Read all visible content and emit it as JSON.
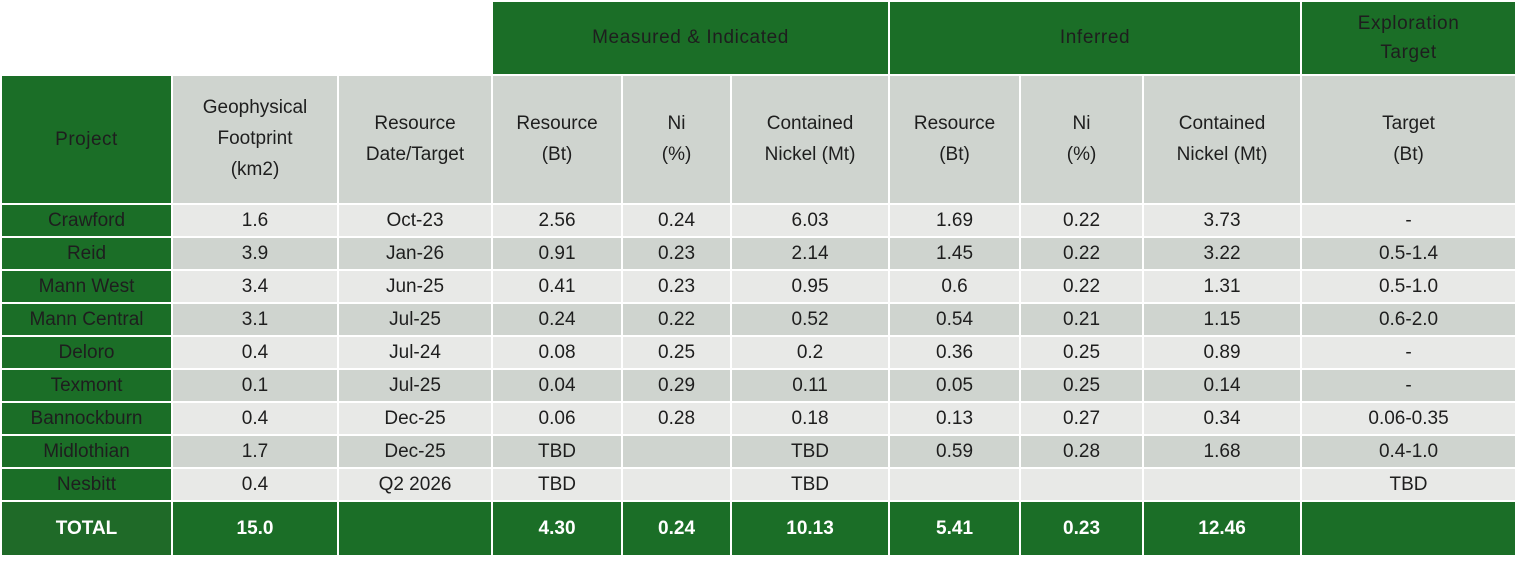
{
  "group_headers": {
    "measured_indicated": "Measured & Indicated",
    "inferred": "Inferred",
    "exploration_target_line1": "Exploration",
    "exploration_target_line2": "Target"
  },
  "column_headers": {
    "project": "Project",
    "footprint": [
      "Geophysical",
      "Footprint",
      "(km2)"
    ],
    "date": [
      "Resource",
      "Date/Target"
    ],
    "mi_resource": [
      "Resource",
      "(Bt)"
    ],
    "mi_ni": [
      "Ni",
      "(%)"
    ],
    "mi_contained": [
      "Contained",
      "Nickel (Mt)"
    ],
    "inf_resource": [
      "Resource",
      "(Bt)"
    ],
    "inf_ni": [
      "Ni",
      "(%)"
    ],
    "inf_contained": [
      "Contained",
      "Nickel (Mt)"
    ],
    "target": [
      "Target",
      "(Bt)"
    ]
  },
  "rows": [
    [
      "Crawford",
      "1.6",
      "Oct-23",
      "2.56",
      "0.24",
      "6.03",
      "1.69",
      "0.22",
      "3.73",
      "-"
    ],
    [
      "Reid",
      "3.9",
      "Jan-26",
      "0.91",
      "0.23",
      "2.14",
      "1.45",
      "0.22",
      "3.22",
      "0.5-1.4"
    ],
    [
      "Mann West",
      "3.4",
      "Jun-25",
      "0.41",
      "0.23",
      "0.95",
      "0.6",
      "0.22",
      "1.31",
      "0.5-1.0"
    ],
    [
      "Mann Central",
      "3.1",
      "Jul-25",
      "0.24",
      "0.22",
      "0.52",
      "0.54",
      "0.21",
      "1.15",
      "0.6-2.0"
    ],
    [
      "Deloro",
      "0.4",
      "Jul-24",
      "0.08",
      "0.25",
      "0.2",
      "0.36",
      "0.25",
      "0.89",
      "-"
    ],
    [
      "Texmont",
      "0.1",
      "Jul-25",
      "0.04",
      "0.29",
      "0.11",
      "0.05",
      "0.25",
      "0.14",
      "-"
    ],
    [
      "Bannockburn",
      "0.4",
      "Dec-25",
      "0.06",
      "0.28",
      "0.18",
      "0.13",
      "0.27",
      "0.34",
      "0.06-0.35"
    ],
    [
      "Midlothian",
      "1.7",
      "Dec-25",
      "TBD",
      "",
      "TBD",
      "0.59",
      "0.28",
      "1.68",
      "0.4-1.0"
    ],
    [
      "Nesbitt",
      "0.4",
      "Q2 2026",
      "TBD",
      "",
      "TBD",
      "",
      "",
      "",
      "TBD"
    ]
  ],
  "total": {
    "label": "TOTAL",
    "footprint": "15.0",
    "date": "",
    "mi_resource": "4.30",
    "mi_ni": "0.24",
    "mi_contained": "10.13",
    "inf_resource": "5.41",
    "inf_ni": "0.23",
    "inf_contained": "12.46",
    "target": ""
  },
  "colors": {
    "brand_green": "#1b6e27",
    "header_gray": "#cfd4cf",
    "row_light": "#e8e9e7",
    "row_dark": "#cfd4cf"
  }
}
